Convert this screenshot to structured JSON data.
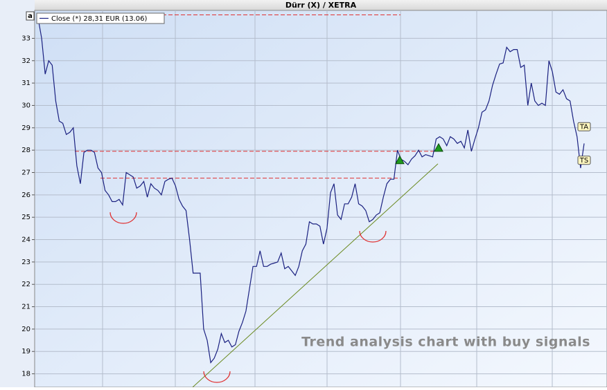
{
  "chart_data": {
    "type": "line",
    "title": "Dürr (X) / XETRA",
    "corner_label": "a",
    "annotation": "Trend analysis chart with buy signals",
    "series": [
      {
        "name": "Close (*) 28,31 EUR (13.06)",
        "color": "#1a2080",
        "values": [
          33.9,
          33,
          31.4,
          32,
          31.8,
          30.2,
          29.3,
          29.2,
          28.7,
          28.8,
          29,
          27.3,
          26.5,
          27.9,
          28,
          28,
          27.9,
          27.2,
          27,
          26.2,
          26,
          25.7,
          25.7,
          25.8,
          25.55,
          27,
          26.9,
          26.8,
          26.3,
          26.4,
          26.6,
          25.9,
          26.5,
          26.3,
          26.2,
          26,
          26.6,
          26.7,
          26.75,
          26.4,
          25.8,
          25.5,
          25.3,
          24,
          22.5,
          22.5,
          22.5,
          20,
          19.5,
          18.5,
          18.7,
          19.1,
          19.8,
          19.4,
          19.5,
          19.2,
          19.3,
          19.9,
          20.3,
          20.8,
          21.8,
          22.8,
          22.8,
          23.5,
          22.8,
          22.8,
          22.9,
          22.95,
          23,
          23.4,
          22.7,
          22.8,
          22.6,
          22.4,
          22.8,
          23.5,
          23.8,
          24.8,
          24.7,
          24.7,
          24.6,
          23.8,
          24.5,
          26.1,
          26.5,
          25.1,
          24.9,
          25.6,
          25.6,
          25.9,
          26.5,
          25.6,
          25.5,
          25.3,
          24.8,
          24.9,
          25.1,
          25.2,
          25.9,
          26.5,
          26.7,
          26.7,
          28,
          27.6,
          27.5,
          27.35,
          27.6,
          27.75,
          28,
          27.7,
          27.8,
          27.75,
          27.7,
          28.5,
          28.6,
          28.5,
          28.2,
          28.6,
          28.5,
          28.3,
          28.4,
          28.1,
          28.9,
          27.95,
          28.5,
          29,
          29.7,
          29.8,
          30.2,
          30.9,
          31.4,
          31.85,
          31.9,
          32.6,
          32.4,
          32.5,
          32.5,
          31.7,
          31.8,
          30,
          31,
          30.2,
          30,
          30.1,
          30,
          32,
          31.5,
          30.6,
          30.5,
          30.7,
          30.3,
          30.2,
          29.3,
          28.6,
          27.2,
          28.3
        ]
      }
    ],
    "levels": [
      34.05,
      27.95,
      26.75
    ],
    "trendline": [
      17.4,
      27.39
    ],
    "buy_signals": [
      27.55,
      28.1
    ],
    "markers": [
      {
        "label": "TA",
        "value": 29.05
      },
      {
        "label": "TS",
        "value": 27.55
      }
    ],
    "ylim": [
      17.4,
      34.25
    ],
    "yticks": [
      18,
      19,
      20,
      21,
      22,
      23,
      24,
      25,
      26,
      27,
      28,
      29,
      30,
      31,
      32,
      33
    ],
    "grid": true
  }
}
